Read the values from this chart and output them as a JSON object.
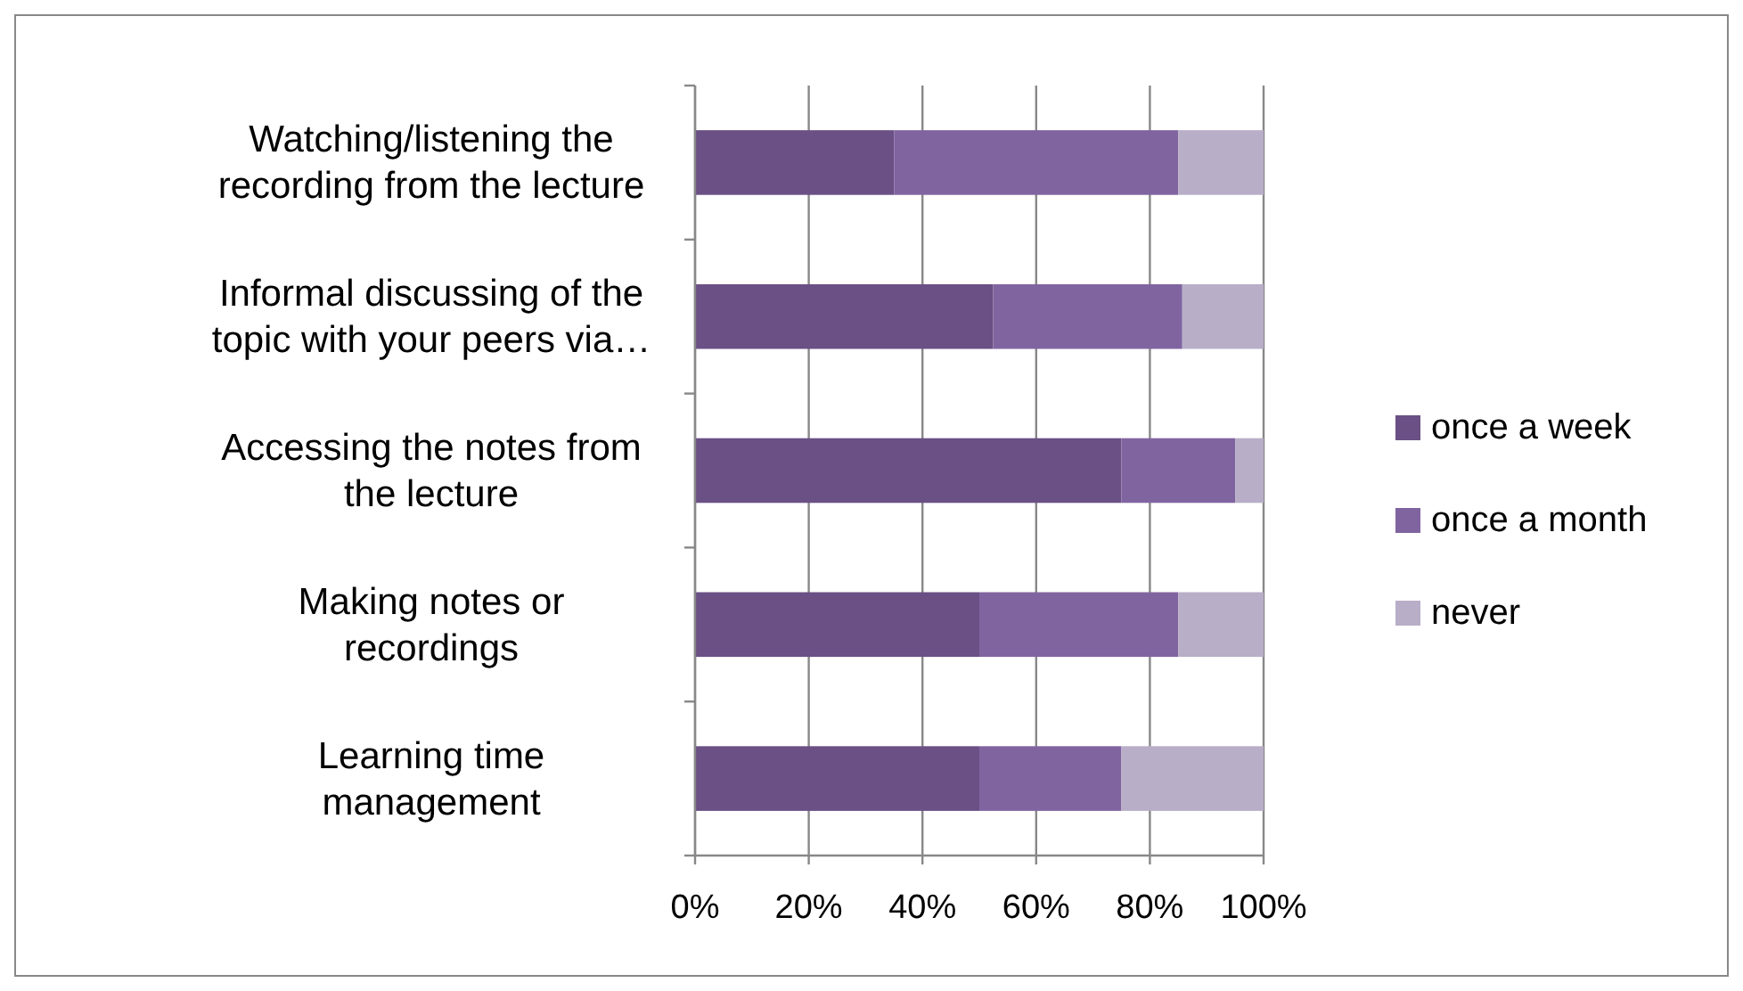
{
  "chart_data": {
    "type": "bar",
    "orientation": "horizontal",
    "stacked": true,
    "categories": [
      "Watching/listening the\nrecording from the lecture",
      "Informal discussing of the\ntopic with your peers via…",
      "Accessing the notes from\nthe lecture",
      "Making notes or\nrecordings",
      "Learning time\nmanagement"
    ],
    "series": [
      {
        "name": "once a week",
        "color": "#6a5085",
        "values": [
          35,
          52.4,
          75,
          50,
          50
        ]
      },
      {
        "name": "once a month",
        "color": "#8064a0",
        "values": [
          50,
          33.3,
          20,
          35,
          25
        ]
      },
      {
        "name": "never",
        "color": "#b8aec8",
        "values": [
          15,
          14.3,
          5,
          15,
          25
        ]
      }
    ],
    "xlim": [
      0,
      100
    ],
    "xticks": [
      {
        "value": 0,
        "label": "0%"
      },
      {
        "value": 20,
        "label": "20%"
      },
      {
        "value": 40,
        "label": "40%"
      },
      {
        "value": 60,
        "label": "60%"
      },
      {
        "value": 80,
        "label": "80%"
      },
      {
        "value": 100,
        "label": "100%"
      }
    ],
    "grid": "x",
    "legend": "right"
  }
}
